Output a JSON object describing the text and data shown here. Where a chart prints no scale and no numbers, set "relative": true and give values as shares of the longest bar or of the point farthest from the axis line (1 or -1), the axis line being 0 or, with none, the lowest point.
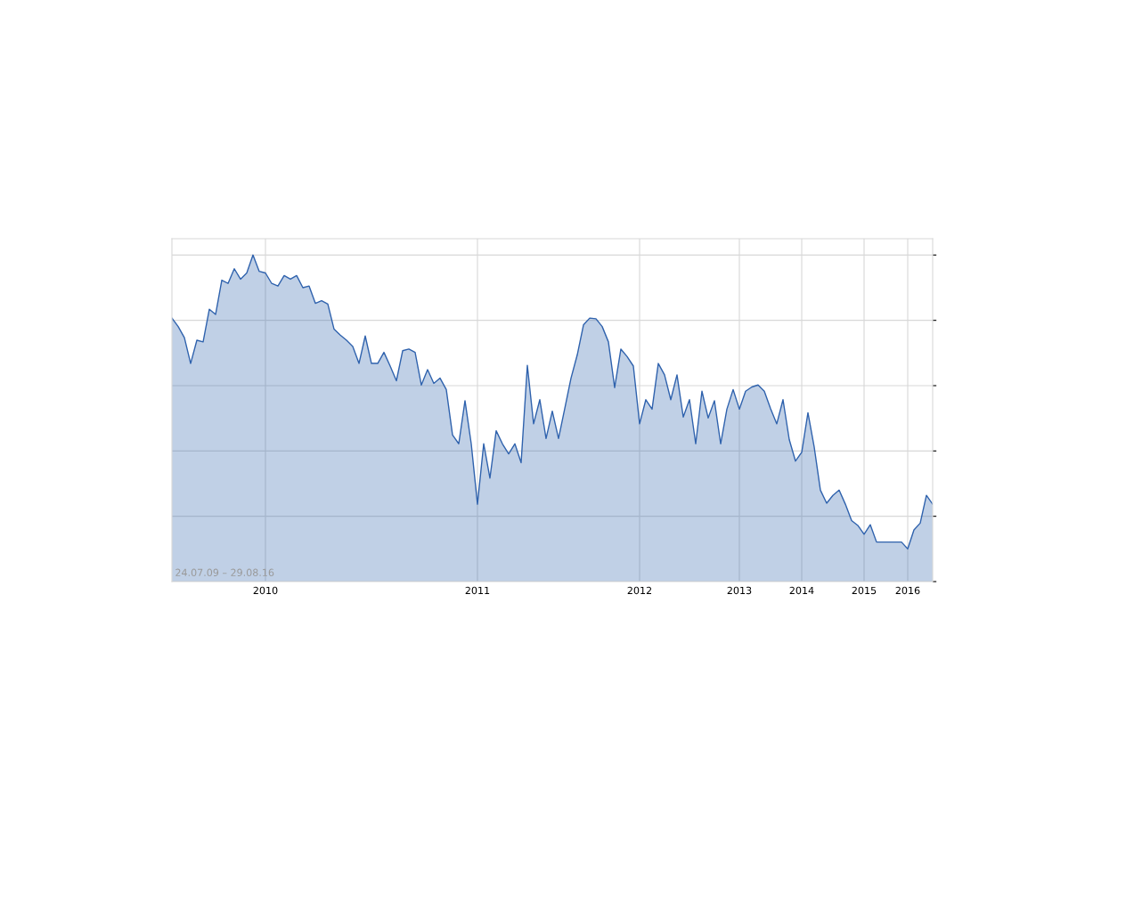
{
  "chart_data": {
    "type": "area",
    "relative": true,
    "categories": [
      null,
      null,
      null,
      null,
      null,
      null,
      null,
      null,
      null,
      null,
      null,
      null,
      null,
      null,
      null,
      "2010",
      null,
      null,
      null,
      null,
      null,
      null,
      null,
      null,
      null,
      null,
      null,
      null,
      null,
      null,
      null,
      null,
      null,
      null,
      null,
      null,
      null,
      null,
      null,
      null,
      null,
      null,
      null,
      null,
      null,
      null,
      null,
      null,
      null,
      "2011",
      null,
      null,
      null,
      null,
      null,
      null,
      null,
      null,
      null,
      null,
      null,
      null,
      null,
      null,
      null,
      null,
      null,
      null,
      null,
      null,
      null,
      null,
      null,
      null,
      null,
      "2012",
      null,
      null,
      null,
      null,
      null,
      null,
      null,
      null,
      null,
      null,
      null,
      null,
      null,
      null,
      null,
      "2013",
      null,
      null,
      null,
      null,
      null,
      null,
      null,
      null,
      null,
      "2014",
      null,
      null,
      null,
      null,
      null,
      null,
      null,
      null,
      null,
      "2015",
      null,
      null,
      null,
      null,
      null,
      null,
      "2016",
      null,
      null,
      null,
      null
    ],
    "series": [
      {
        "color": "#2f62ad",
        "values": [
          0.807,
          0.781,
          0.747,
          0.668,
          0.739,
          0.734,
          0.834,
          0.818,
          0.923,
          0.913,
          0.958,
          0.926,
          0.945,
          1.0,
          0.95,
          0.945,
          0.913,
          0.905,
          0.937,
          0.926,
          0.937,
          0.9,
          0.905,
          0.852,
          0.86,
          0.85,
          0.773,
          0.755,
          0.739,
          0.72,
          0.668,
          0.752,
          0.668,
          0.668,
          0.702,
          0.66,
          0.615,
          0.707,
          0.712,
          0.702,
          0.602,
          0.649,
          0.607,
          0.623,
          0.588,
          0.449,
          0.422,
          0.554,
          0.422,
          0.237,
          0.422,
          0.317,
          0.462,
          0.422,
          0.391,
          0.422,
          0.364,
          0.662,
          0.483,
          0.557,
          0.438,
          0.522,
          0.438,
          0.53,
          0.623,
          0.694,
          0.786,
          0.807,
          0.805,
          0.781,
          0.734,
          0.594,
          0.712,
          0.689,
          0.66,
          0.483,
          0.557,
          0.528,
          0.668,
          0.633,
          0.557,
          0.633,
          0.504,
          0.557,
          0.422,
          0.583,
          0.501,
          0.554,
          0.422,
          0.528,
          0.588,
          0.528,
          0.583,
          0.596,
          0.602,
          0.583,
          0.53,
          0.483,
          0.557,
          0.435,
          0.369,
          0.396,
          0.517,
          0.412,
          0.28,
          0.24,
          0.264,
          0.28,
          0.237,
          0.187,
          0.172,
          0.145,
          0.174,
          0.121,
          0.121,
          0.121,
          0.121,
          0.121,
          0.1,
          0.158,
          0.179,
          0.264,
          0.237
        ]
      }
    ],
    "grid": true,
    "tick_labels": "x",
    "annotations": [
      "24.07.09 – 29.08.16"
    ]
  }
}
